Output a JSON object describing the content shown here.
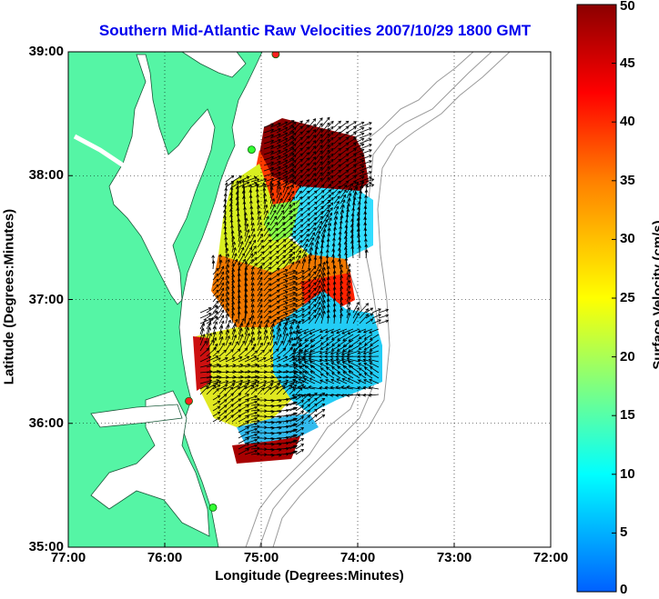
{
  "title": "Southern Mid-Atlantic Raw Velocities 2007/10/29 1800 GMT",
  "xlabel": "Longitude (Degrees:Minutes)",
  "ylabel": "Latitude (Degrees:Minutes)",
  "colorbar_label": "Surface Velocity (cm/s)",
  "x_ticks": [
    "77:00",
    "76:00",
    "75:00",
    "74:00",
    "73:00",
    "72:00"
  ],
  "y_ticks": [
    "39:00",
    "38:00",
    "37:00",
    "36:00",
    "35:00"
  ],
  "colorbar_ticks": [
    "50",
    "45",
    "40",
    "35",
    "30",
    "25",
    "20",
    "15",
    "10",
    "5",
    "0"
  ],
  "colors": {
    "land": "#55f5a5",
    "title": "#0000ee",
    "ocean": "#ffffff"
  },
  "chart_data": {
    "type": "heatmap",
    "title": "Southern Mid-Atlantic Raw Velocities 2007/10/29 1800 GMT",
    "xlabel": "Longitude (Degrees:Minutes)",
    "ylabel": "Latitude (Degrees:Minutes)",
    "xlim": [
      -77,
      -72
    ],
    "ylim": [
      35,
      39
    ],
    "clim": [
      0,
      50
    ],
    "colorbar_label": "Surface Velocity (cm/s)",
    "grid": true,
    "regions": [
      {
        "lon": -74.6,
        "lat": 38.3,
        "value": 48
      },
      {
        "lon": -74.2,
        "lat": 37.7,
        "value": 12
      },
      {
        "lon": -75.2,
        "lat": 37.6,
        "value": 25
      },
      {
        "lon": -75.0,
        "lat": 36.9,
        "value": 33
      },
      {
        "lon": -74.3,
        "lat": 36.9,
        "value": 38
      },
      {
        "lon": -74.3,
        "lat": 36.5,
        "value": 15
      },
      {
        "lon": -75.4,
        "lat": 36.4,
        "value": 22
      },
      {
        "lon": -74.9,
        "lat": 36.0,
        "value": 12
      },
      {
        "lon": -74.9,
        "lat": 35.8,
        "value": 45
      }
    ],
    "stations": [
      {
        "lon": -74.85,
        "lat": 38.98,
        "status": "red"
      },
      {
        "lon": -75.1,
        "lat": 38.21,
        "status": "green"
      },
      {
        "lon": -75.75,
        "lat": 36.18,
        "status": "red"
      },
      {
        "lon": -75.5,
        "lat": 35.32,
        "status": "green"
      }
    ]
  }
}
